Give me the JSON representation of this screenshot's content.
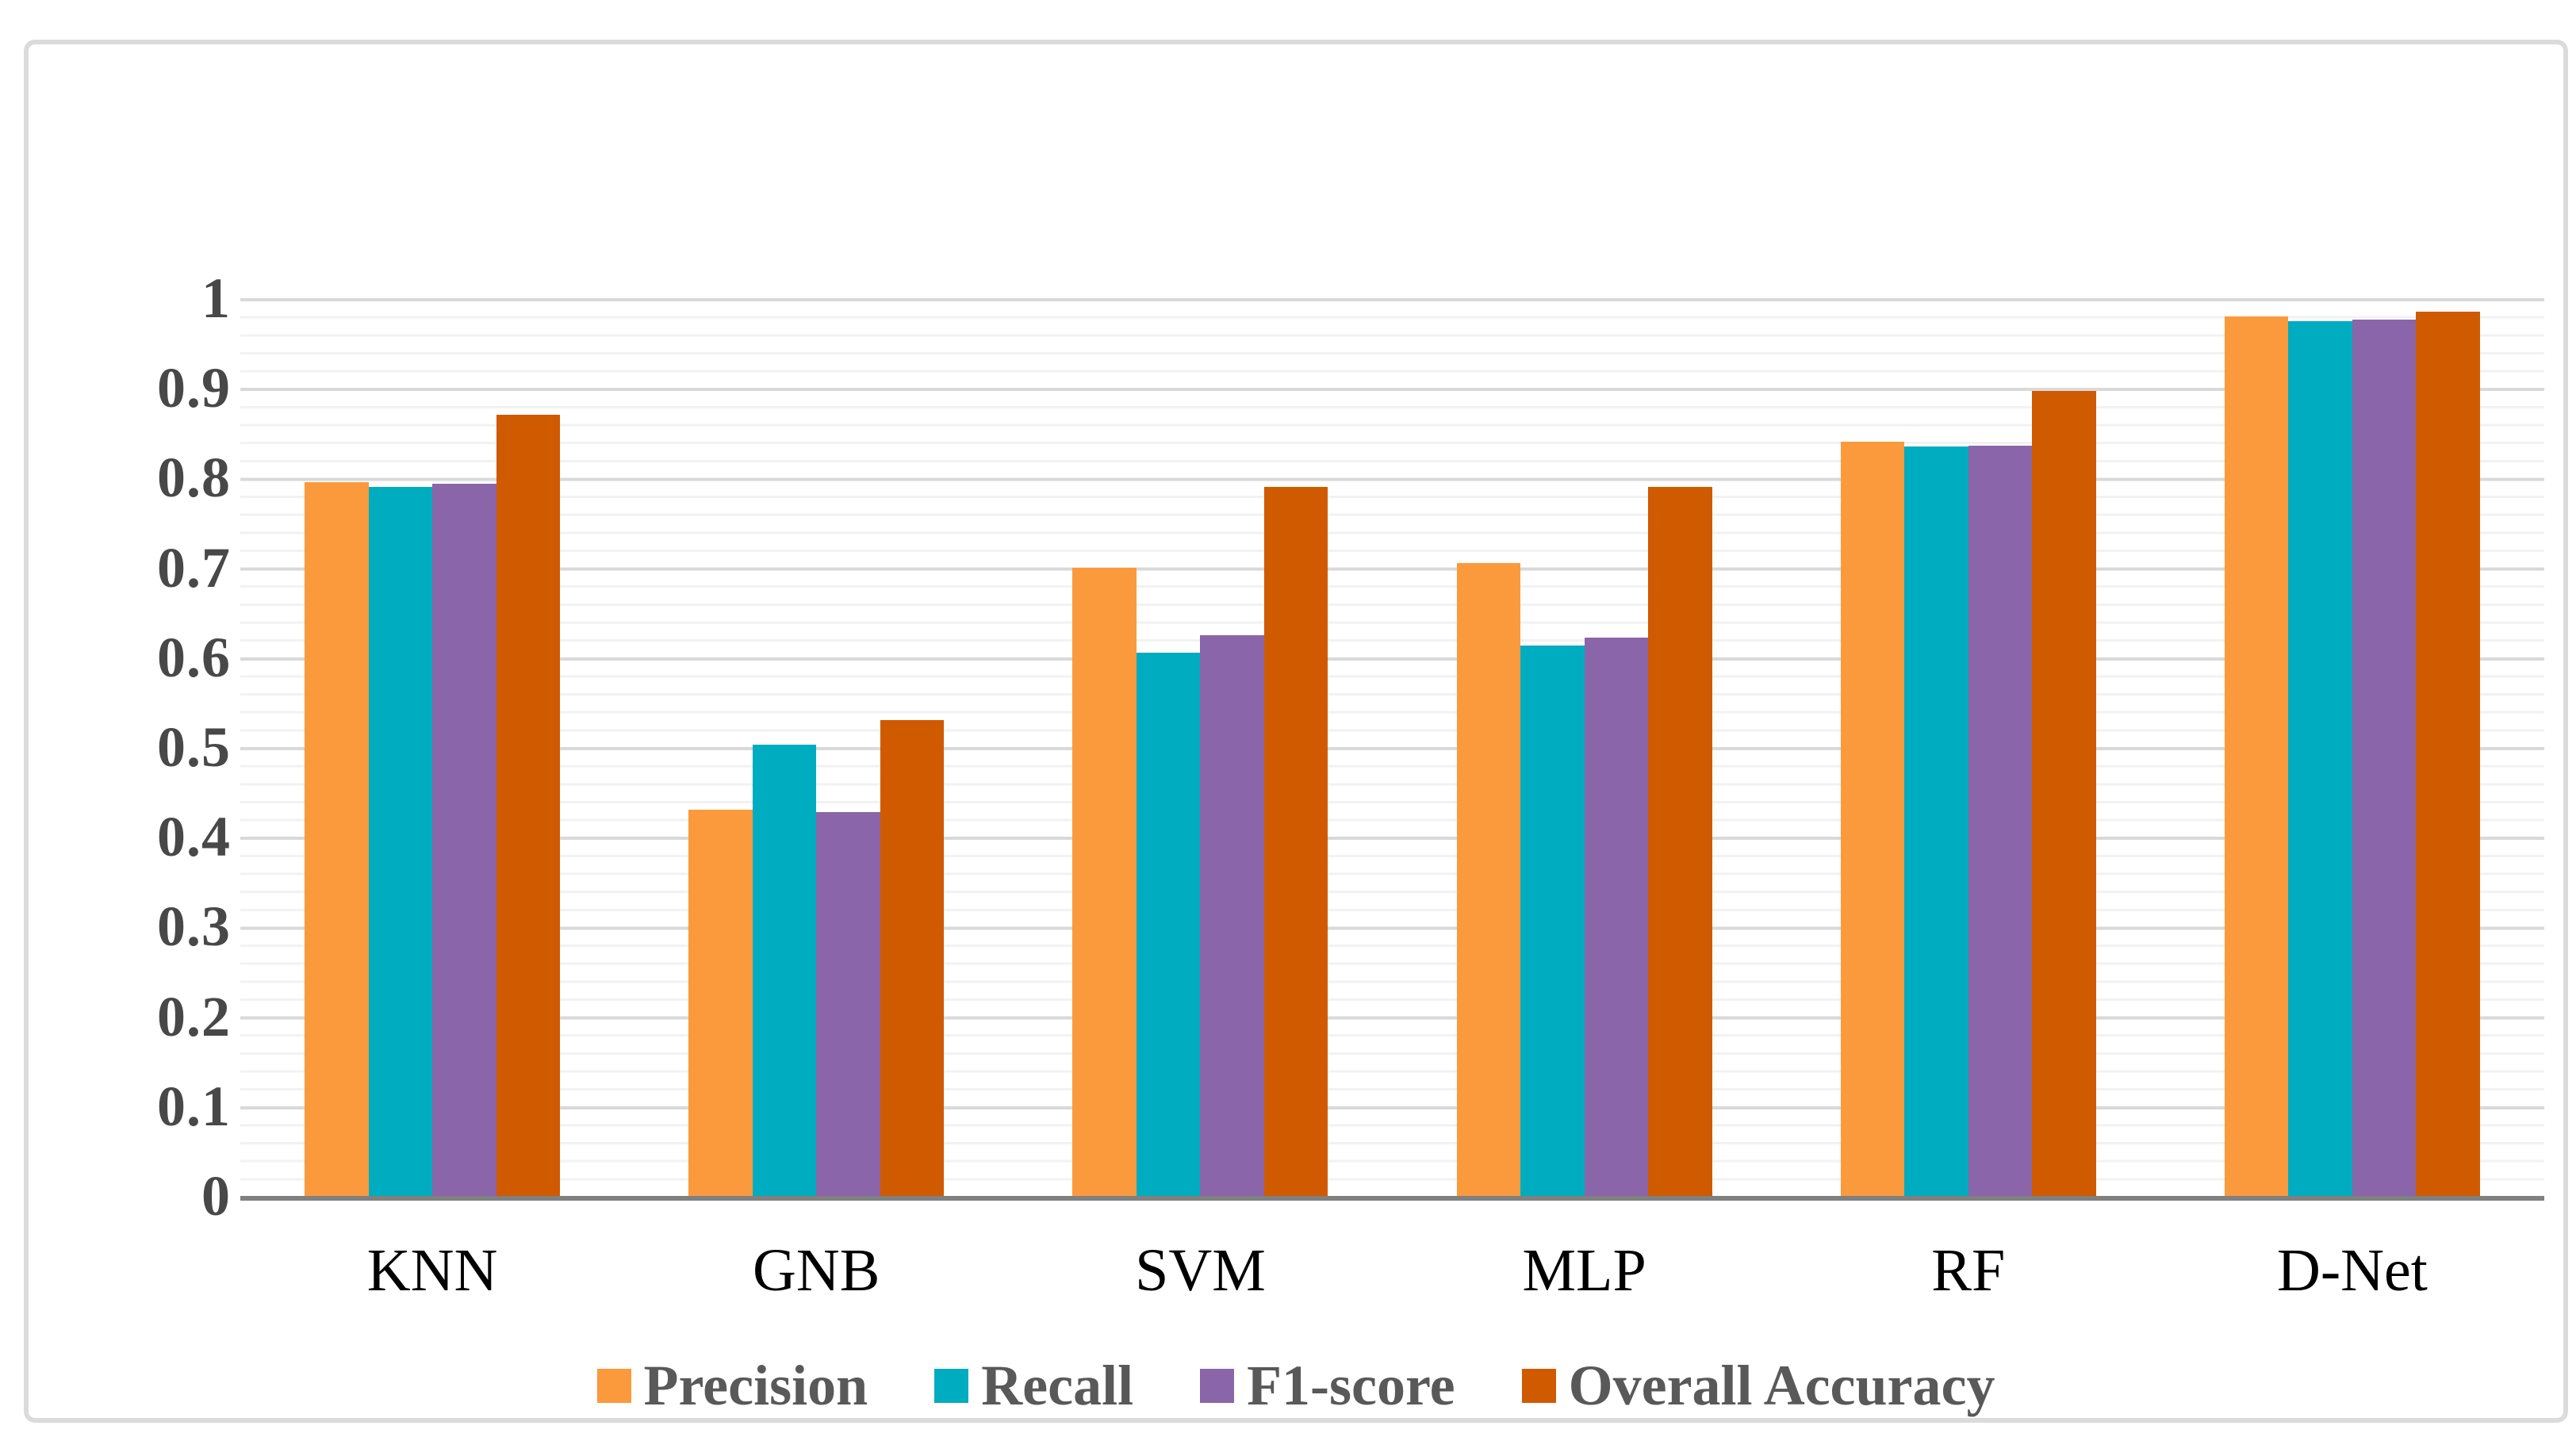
{
  "chart_data": {
    "type": "bar",
    "title": "",
    "categories": [
      "KNN",
      "GNB",
      "SVM",
      "MLP",
      "RF",
      "D-Net"
    ],
    "series": [
      {
        "name": "Precision",
        "color": "#FB9A3D",
        "values": [
          0.795,
          0.43,
          0.7,
          0.705,
          0.84,
          0.98
        ]
      },
      {
        "name": "Recall",
        "color": "#00ACBF",
        "values": [
          0.79,
          0.503,
          0.605,
          0.613,
          0.835,
          0.974
        ]
      },
      {
        "name": "F1-score",
        "color": "#8A65A9",
        "values": [
          0.793,
          0.428,
          0.625,
          0.622,
          0.836,
          0.976
        ]
      },
      {
        "name": "Overall Accuracy",
        "color": "#D05A00",
        "values": [
          0.87,
          0.53,
          0.79,
          0.79,
          0.897,
          0.985
        ]
      }
    ],
    "y_axis": {
      "min": 0,
      "max": 1,
      "tick_values": [
        1,
        0.9,
        0.8,
        0.7,
        0.6,
        0.5,
        0.4,
        0.3,
        0.2,
        0.1,
        0
      ],
      "tick_labels": [
        "1",
        "0.9",
        "0.8",
        "0.7",
        "0.6",
        "0.5",
        "0.4",
        "0.3",
        "0.2",
        "0.1",
        "0"
      ],
      "major_gridline_step": 0.1,
      "minor_gridline_step": 0.02
    },
    "xlabel": "",
    "ylabel": "",
    "grid": true,
    "legend_position": "bottom"
  },
  "style_colors": {
    "axis_line": "#808080",
    "major_gridline": "#D9D9D9",
    "minor_gridline": "#F2F2F2",
    "frame_border": "#DBDBDB",
    "y_tick_text": "#484848",
    "x_tick_text": "#000000",
    "legend_text": "#595959"
  }
}
